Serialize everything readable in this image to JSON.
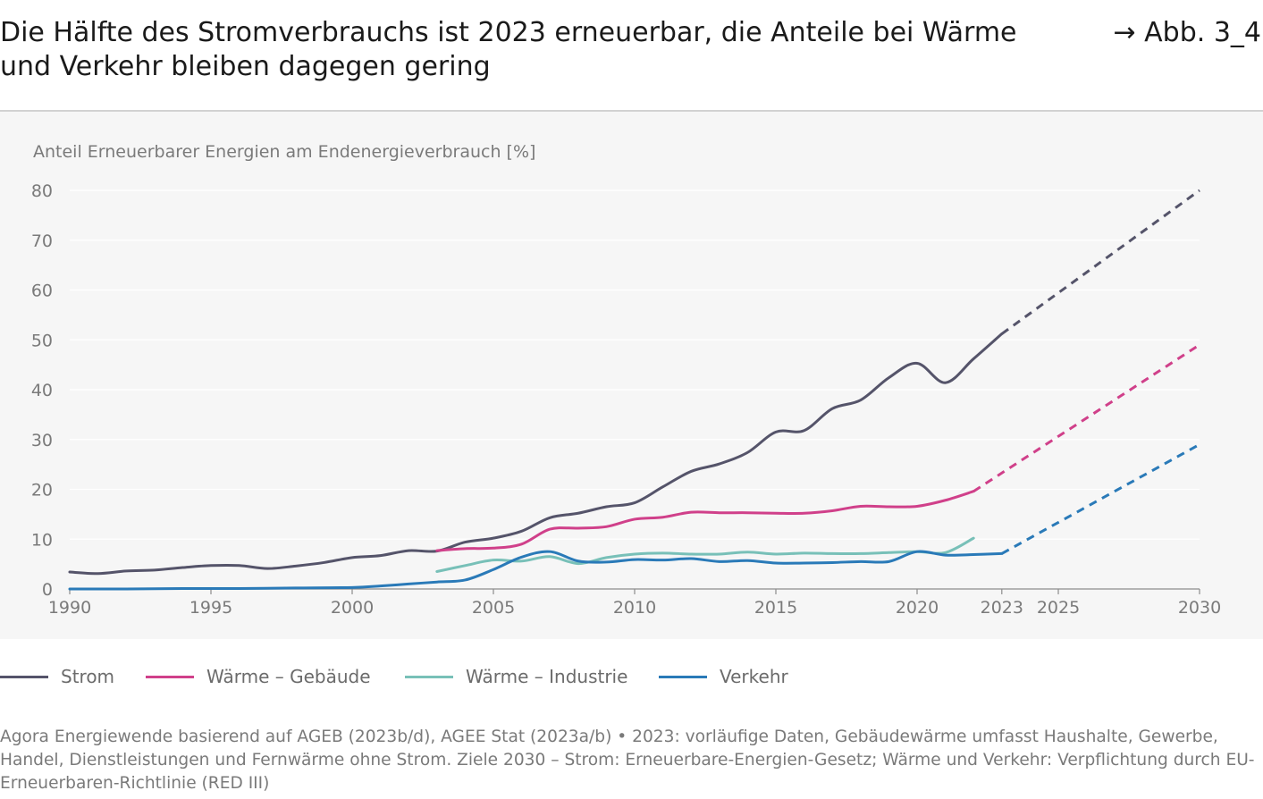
{
  "header": {
    "title": "Die Hälfte des Stromverbrauchs ist 2023 erneuerbar, die Anteile bei Wärme und Verkehr bleiben dagegen gering",
    "figure_ref": "→ Abb. 3_4"
  },
  "chart_data": {
    "type": "line",
    "title": "Die Hälfte des Stromverbrauchs ist 2023 erneuerbar, die Anteile bei Wärme und Verkehr bleiben dagegen gering",
    "ylabel": "Anteil Erneuerbarer Energien am Endenergieverbrauch [%]",
    "xlabel": "",
    "xlim": [
      1990,
      2030
    ],
    "ylim": [
      0,
      80
    ],
    "x_ticks": [
      1990,
      1995,
      2000,
      2005,
      2010,
      2015,
      2020,
      2023,
      2025,
      2030
    ],
    "y_ticks": [
      0,
      10,
      20,
      30,
      40,
      50,
      60,
      70,
      80
    ],
    "grid": "horizontal",
    "legend_position": "bottom",
    "series": [
      {
        "name": "Strom",
        "color": "#55546a",
        "x": [
          1990,
          1991,
          1992,
          1993,
          1994,
          1995,
          1996,
          1997,
          1998,
          1999,
          2000,
          2001,
          2002,
          2003,
          2004,
          2005,
          2006,
          2007,
          2008,
          2009,
          2010,
          2011,
          2012,
          2013,
          2014,
          2015,
          2016,
          2017,
          2018,
          2019,
          2020,
          2021,
          2022,
          2023
        ],
        "values": [
          3.4,
          3.1,
          3.6,
          3.8,
          4.3,
          4.7,
          4.7,
          4.1,
          4.6,
          5.3,
          6.3,
          6.7,
          7.7,
          7.6,
          9.4,
          10.2,
          11.6,
          14.3,
          15.2,
          16.5,
          17.3,
          20.5,
          23.6,
          25.1,
          27.4,
          31.5,
          31.8,
          36.2,
          37.9,
          42.4,
          45.3,
          41.4,
          46.2,
          51.2
        ],
        "target_2030": 80
      },
      {
        "name": "Wärme – Gebäude",
        "color": "#d0408a",
        "x": [
          2003,
          2004,
          2005,
          2006,
          2007,
          2008,
          2009,
          2010,
          2011,
          2012,
          2013,
          2014,
          2015,
          2016,
          2017,
          2018,
          2019,
          2020,
          2021,
          2022
        ],
        "values": [
          7.7,
          8.1,
          8.2,
          9.0,
          12.0,
          12.2,
          12.5,
          14.0,
          14.4,
          15.4,
          15.3,
          15.3,
          15.2,
          15.2,
          15.7,
          16.6,
          16.5,
          16.6,
          17.8,
          19.6
        ],
        "target_2030": 49
      },
      {
        "name": "Wärme – Industrie",
        "color": "#78c0b8",
        "x": [
          2003,
          2004,
          2005,
          2006,
          2007,
          2008,
          2009,
          2010,
          2011,
          2012,
          2013,
          2014,
          2015,
          2016,
          2017,
          2018,
          2019,
          2020,
          2021,
          2022
        ],
        "values": [
          3.5,
          4.7,
          5.8,
          5.6,
          6.5,
          5.1,
          6.3,
          7.0,
          7.2,
          7.0,
          7.0,
          7.4,
          7.0,
          7.2,
          7.1,
          7.1,
          7.3,
          7.5,
          7.3,
          10.2
        ]
      },
      {
        "name": "Verkehr",
        "color": "#2a7ab8",
        "x": [
          1990,
          1992,
          1994,
          1996,
          1998,
          2000,
          2001,
          2002,
          2003,
          2004,
          2005,
          2006,
          2007,
          2008,
          2009,
          2010,
          2011,
          2012,
          2013,
          2014,
          2015,
          2016,
          2017,
          2018,
          2019,
          2020,
          2021,
          2022,
          2023
        ],
        "values": [
          0.0,
          0.0,
          0.1,
          0.1,
          0.2,
          0.3,
          0.6,
          1.0,
          1.4,
          1.8,
          3.9,
          6.4,
          7.5,
          5.6,
          5.4,
          5.9,
          5.8,
          6.1,
          5.5,
          5.7,
          5.2,
          5.2,
          5.3,
          5.5,
          5.5,
          7.5,
          6.8,
          6.9,
          7.1
        ],
        "target_2030": 29
      }
    ]
  },
  "source": "Agora Energiewende basierend auf AGEB (2023b/d), AGEE Stat (2023a/b) • 2023: vorläufige Daten, Gebäudewärme umfasst Haushalte, Gewerbe, Handel, Dienstleistungen und Fernwärme ohne Strom. Ziele 2030 – Strom: Erneuerbare-Energien-Gesetz; Wärme und Verkehr: Verpflichtung durch EU-Erneuerbaren-Richtlinie (RED III)"
}
